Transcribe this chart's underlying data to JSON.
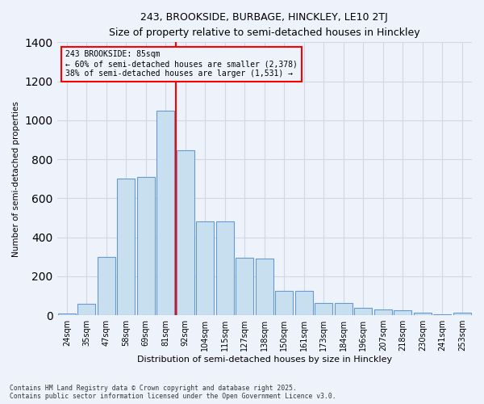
{
  "title1": "243, BROOKSIDE, BURBAGE, HINCKLEY, LE10 2TJ",
  "title2": "Size of property relative to semi-detached houses in Hinckley",
  "xlabel": "Distribution of semi-detached houses by size in Hinckley",
  "ylabel": "Number of semi-detached properties",
  "categories": [
    "24sqm",
    "35sqm",
    "47sqm",
    "58sqm",
    "69sqm",
    "81sqm",
    "92sqm",
    "104sqm",
    "115sqm",
    "127sqm",
    "138sqm",
    "150sqm",
    "161sqm",
    "173sqm",
    "184sqm",
    "196sqm",
    "207sqm",
    "218sqm",
    "230sqm",
    "241sqm",
    "253sqm"
  ],
  "values": [
    8,
    60,
    300,
    700,
    710,
    1050,
    845,
    480,
    480,
    295,
    290,
    125,
    125,
    65,
    65,
    38,
    28,
    25,
    14,
    5,
    15
  ],
  "bar_color": "#c8dff0",
  "bar_edge_color": "#6699cc",
  "background_color": "#eef2fb",
  "grid_color": "#d0d8e8",
  "vline_color": "red",
  "annotation_title": "243 BROOKSIDE: 85sqm",
  "annotation_line1": "← 60% of semi-detached houses are smaller (2,378)",
  "annotation_line2": "38% of semi-detached houses are larger (1,531) →",
  "footer1": "Contains HM Land Registry data © Crown copyright and database right 2025.",
  "footer2": "Contains public sector information licensed under the Open Government Licence v3.0.",
  "ylim": [
    0,
    1400
  ]
}
